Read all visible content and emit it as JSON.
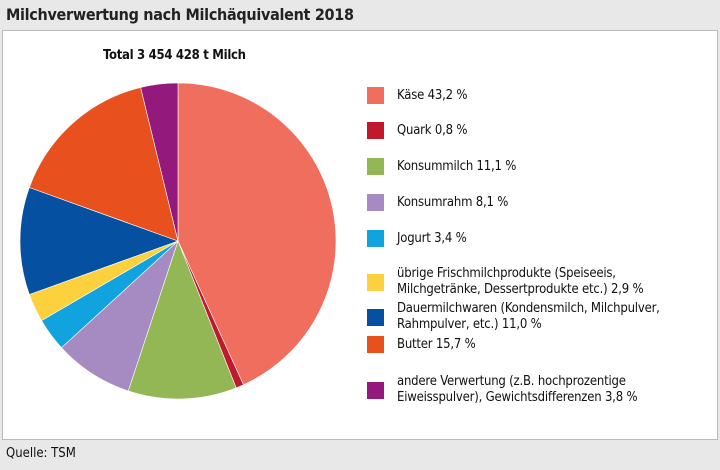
{
  "title": "Milchverwertung nach Milchäquivalent 2018",
  "source": "Quelle: TSM",
  "chart_data": {
    "type": "pie",
    "subtitle": "Total 3 454 428 t Milch",
    "legend_position": "right",
    "slices": [
      {
        "label": "Käse 43,2 %",
        "value": 43.2,
        "color": "#ef6e5e"
      },
      {
        "label": "Quark 0,8 %",
        "value": 0.8,
        "color": "#c0182c"
      },
      {
        "label": "Konsummilch 11,1 %",
        "value": 11.1,
        "color": "#94b756"
      },
      {
        "label": "Konsumrahm 8,1 %",
        "value": 8.1,
        "color": "#a68bc2"
      },
      {
        "label": "Jogurt 3,4 %",
        "value": 3.4,
        "color": "#10a3e0"
      },
      {
        "label": "übrige Frischmilchprodukte (Speiseeis, Milchgetränke, Dessertprodukte etc.) 2,9 %",
        "value": 2.9,
        "color": "#fdd03e"
      },
      {
        "label": "Dauermilchwaren (Kondensmilch, Milchpulver, Rahmpulver, etc.) 11,0 %",
        "value": 11.0,
        "color": "#0550a0"
      },
      {
        "label": "Butter 15,7 %",
        "value": 15.7,
        "color": "#e8501e"
      },
      {
        "label": "andere Verwertung (z.B. hochprozentige Eiweisspulver), Gewichtsdifferenzen 3,8 %",
        "value": 3.8,
        "color": "#93197d"
      }
    ]
  }
}
